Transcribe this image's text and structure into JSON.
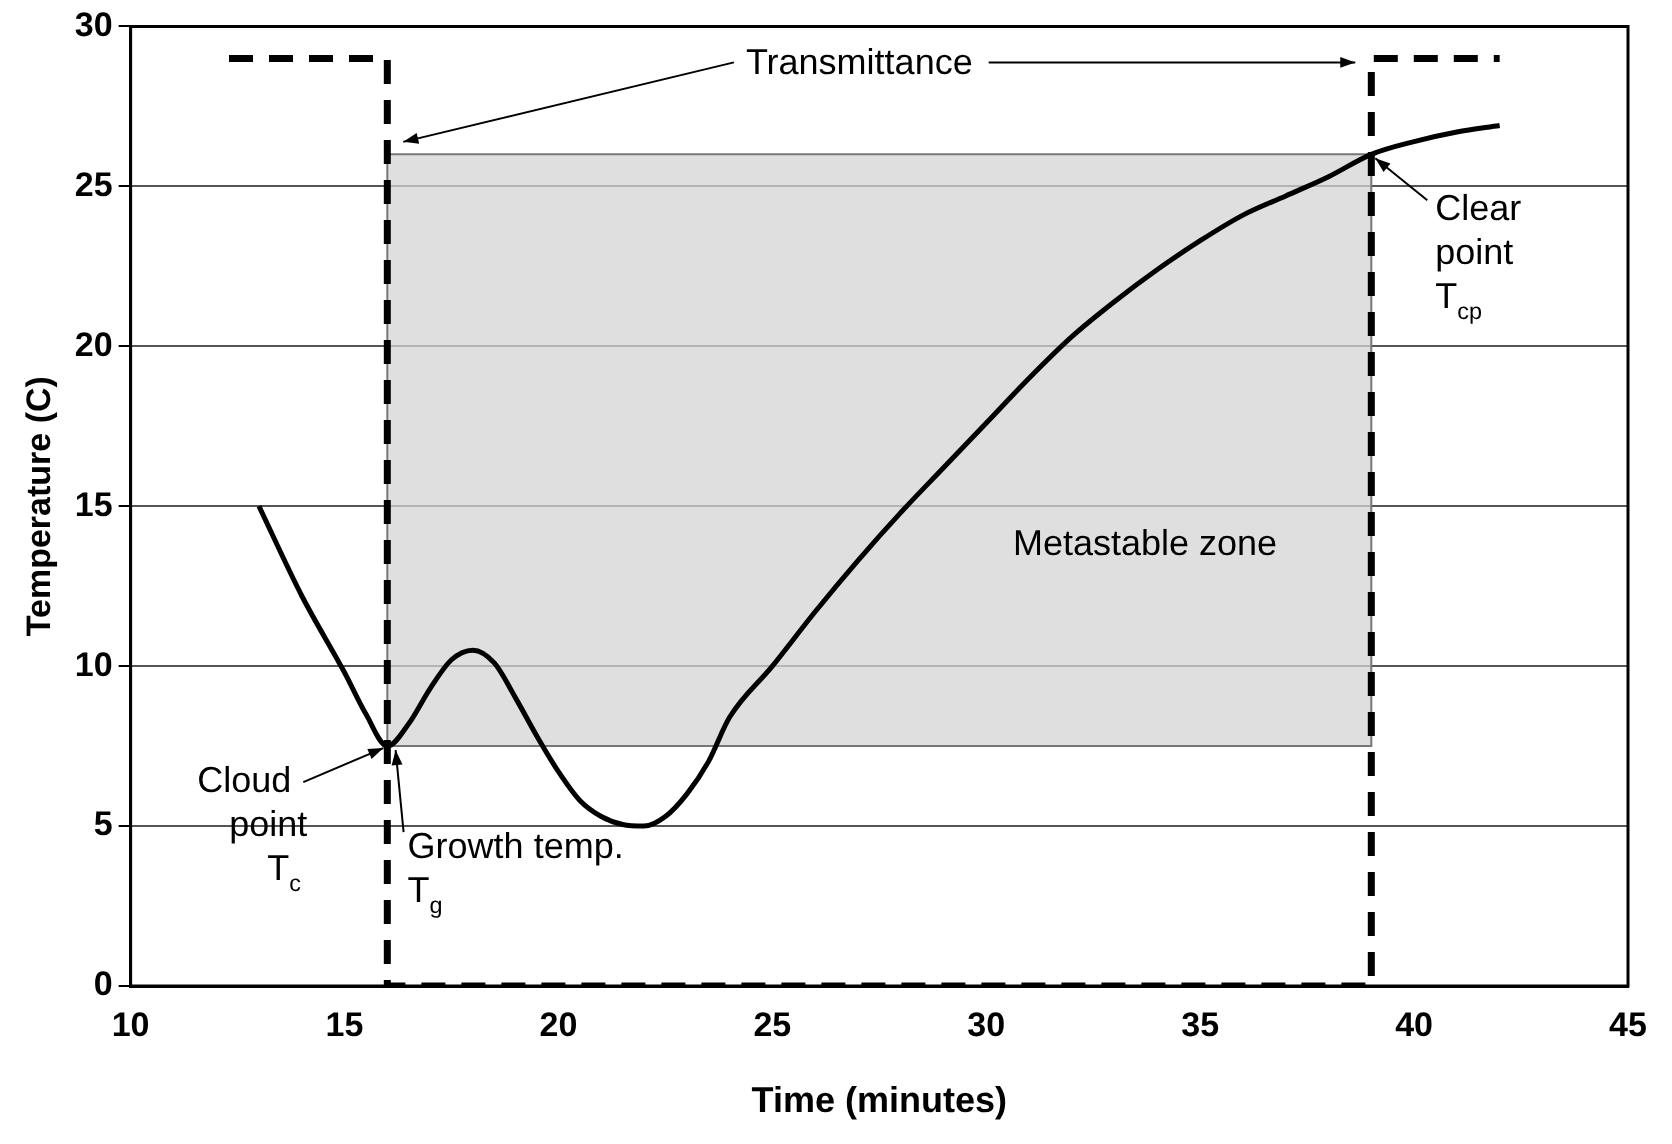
{
  "chart_data": {
    "type": "line",
    "xlabel": "Time (minutes)",
    "ylabel": "Temperature (C)",
    "xlim": [
      10,
      45
    ],
    "xticks": [
      10,
      15,
      20,
      25,
      30,
      35,
      40,
      45
    ],
    "ylim": [
      0,
      30
    ],
    "yticks": [
      0,
      5,
      10,
      15,
      20,
      25,
      30
    ],
    "grid": "y",
    "legend": false,
    "marker": "none",
    "series": [
      {
        "color": "#000000",
        "line_style": "solid",
        "x": [
          13,
          14,
          15,
          15.5,
          16,
          16.5,
          17,
          17.5,
          18,
          18.5,
          19,
          19.5,
          20,
          20.5,
          21,
          21.5,
          22,
          22.5,
          23,
          23.5,
          24,
          25,
          26,
          27,
          28,
          29,
          30,
          31,
          32,
          33,
          34,
          35,
          36,
          37,
          38,
          39,
          40,
          41,
          42
        ],
        "values": [
          15,
          12.2,
          9.8,
          8.5,
          7.5,
          8.2,
          9.3,
          10.2,
          10.5,
          10.1,
          9,
          7.8,
          6.7,
          5.8,
          5.3,
          5.05,
          5,
          5.3,
          6,
          7,
          8.4,
          10,
          11.7,
          13.3,
          14.8,
          16.2,
          17.6,
          19,
          20.3,
          21.4,
          22.4,
          23.3,
          24.1,
          24.7,
          25.3,
          26,
          26.4,
          26.7,
          26.9
        ]
      },
      {
        "color": "#000000",
        "line_style": "dashed",
        "x": [
          12.3,
          16,
          16,
          39,
          39,
          42
        ],
        "values": [
          29,
          29,
          0,
          0,
          29,
          29
        ]
      }
    ],
    "bands": [
      {
        "axis": "y",
        "from": 7.5,
        "to": 26,
        "label": "Metastable zone",
        "color": "#d4d4d4"
      }
    ],
    "annotations": [
      "Transmittance",
      {
        "text": "Cloud\npoint\nT$_{c}$",
        "x": 16,
        "y": 7.5
      },
      {
        "text": "Growth temp.\nT$_{g}$",
        "x": 16.1,
        "y": 7.5
      },
      {
        "text": "Clear\npoint\nT$_{cp}$",
        "x": 39,
        "y": 26
      }
    ]
  }
}
